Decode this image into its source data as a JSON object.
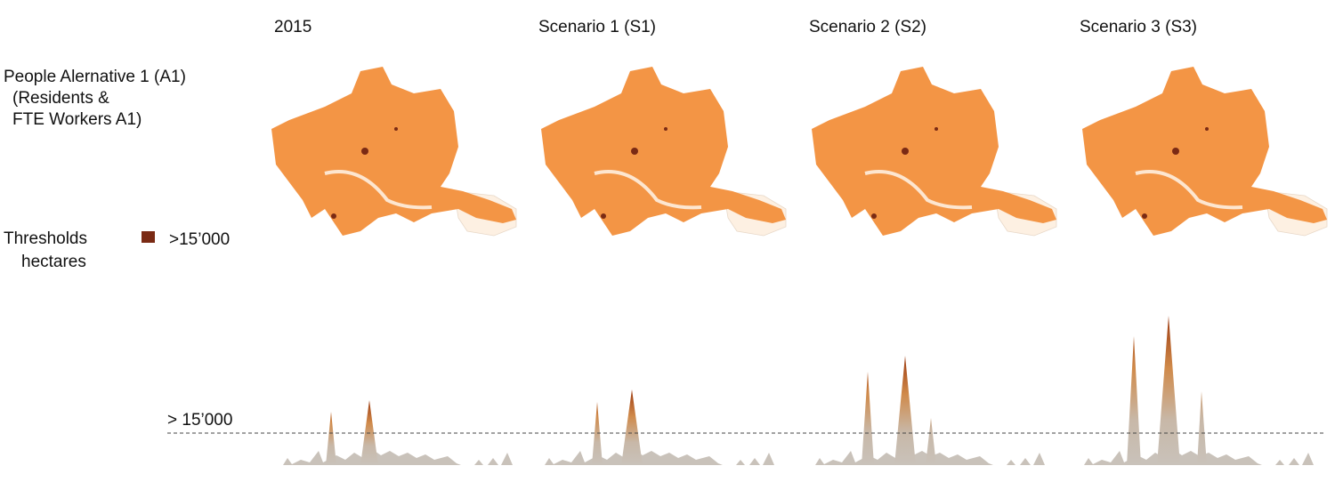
{
  "columns": [
    "2015",
    "Scenario 1 (S1)",
    "Scenario 2 (S2)",
    "Scenario 3 (S3)"
  ],
  "row_label": [
    "People Alernative 1 (A1)",
    "(Residents &",
    "FTE Workers A1)"
  ],
  "legend": {
    "title": [
      "Thresholds",
      "hectares"
    ],
    "label": ">15’000"
  },
  "threshold_label": "> 15’000"
}
